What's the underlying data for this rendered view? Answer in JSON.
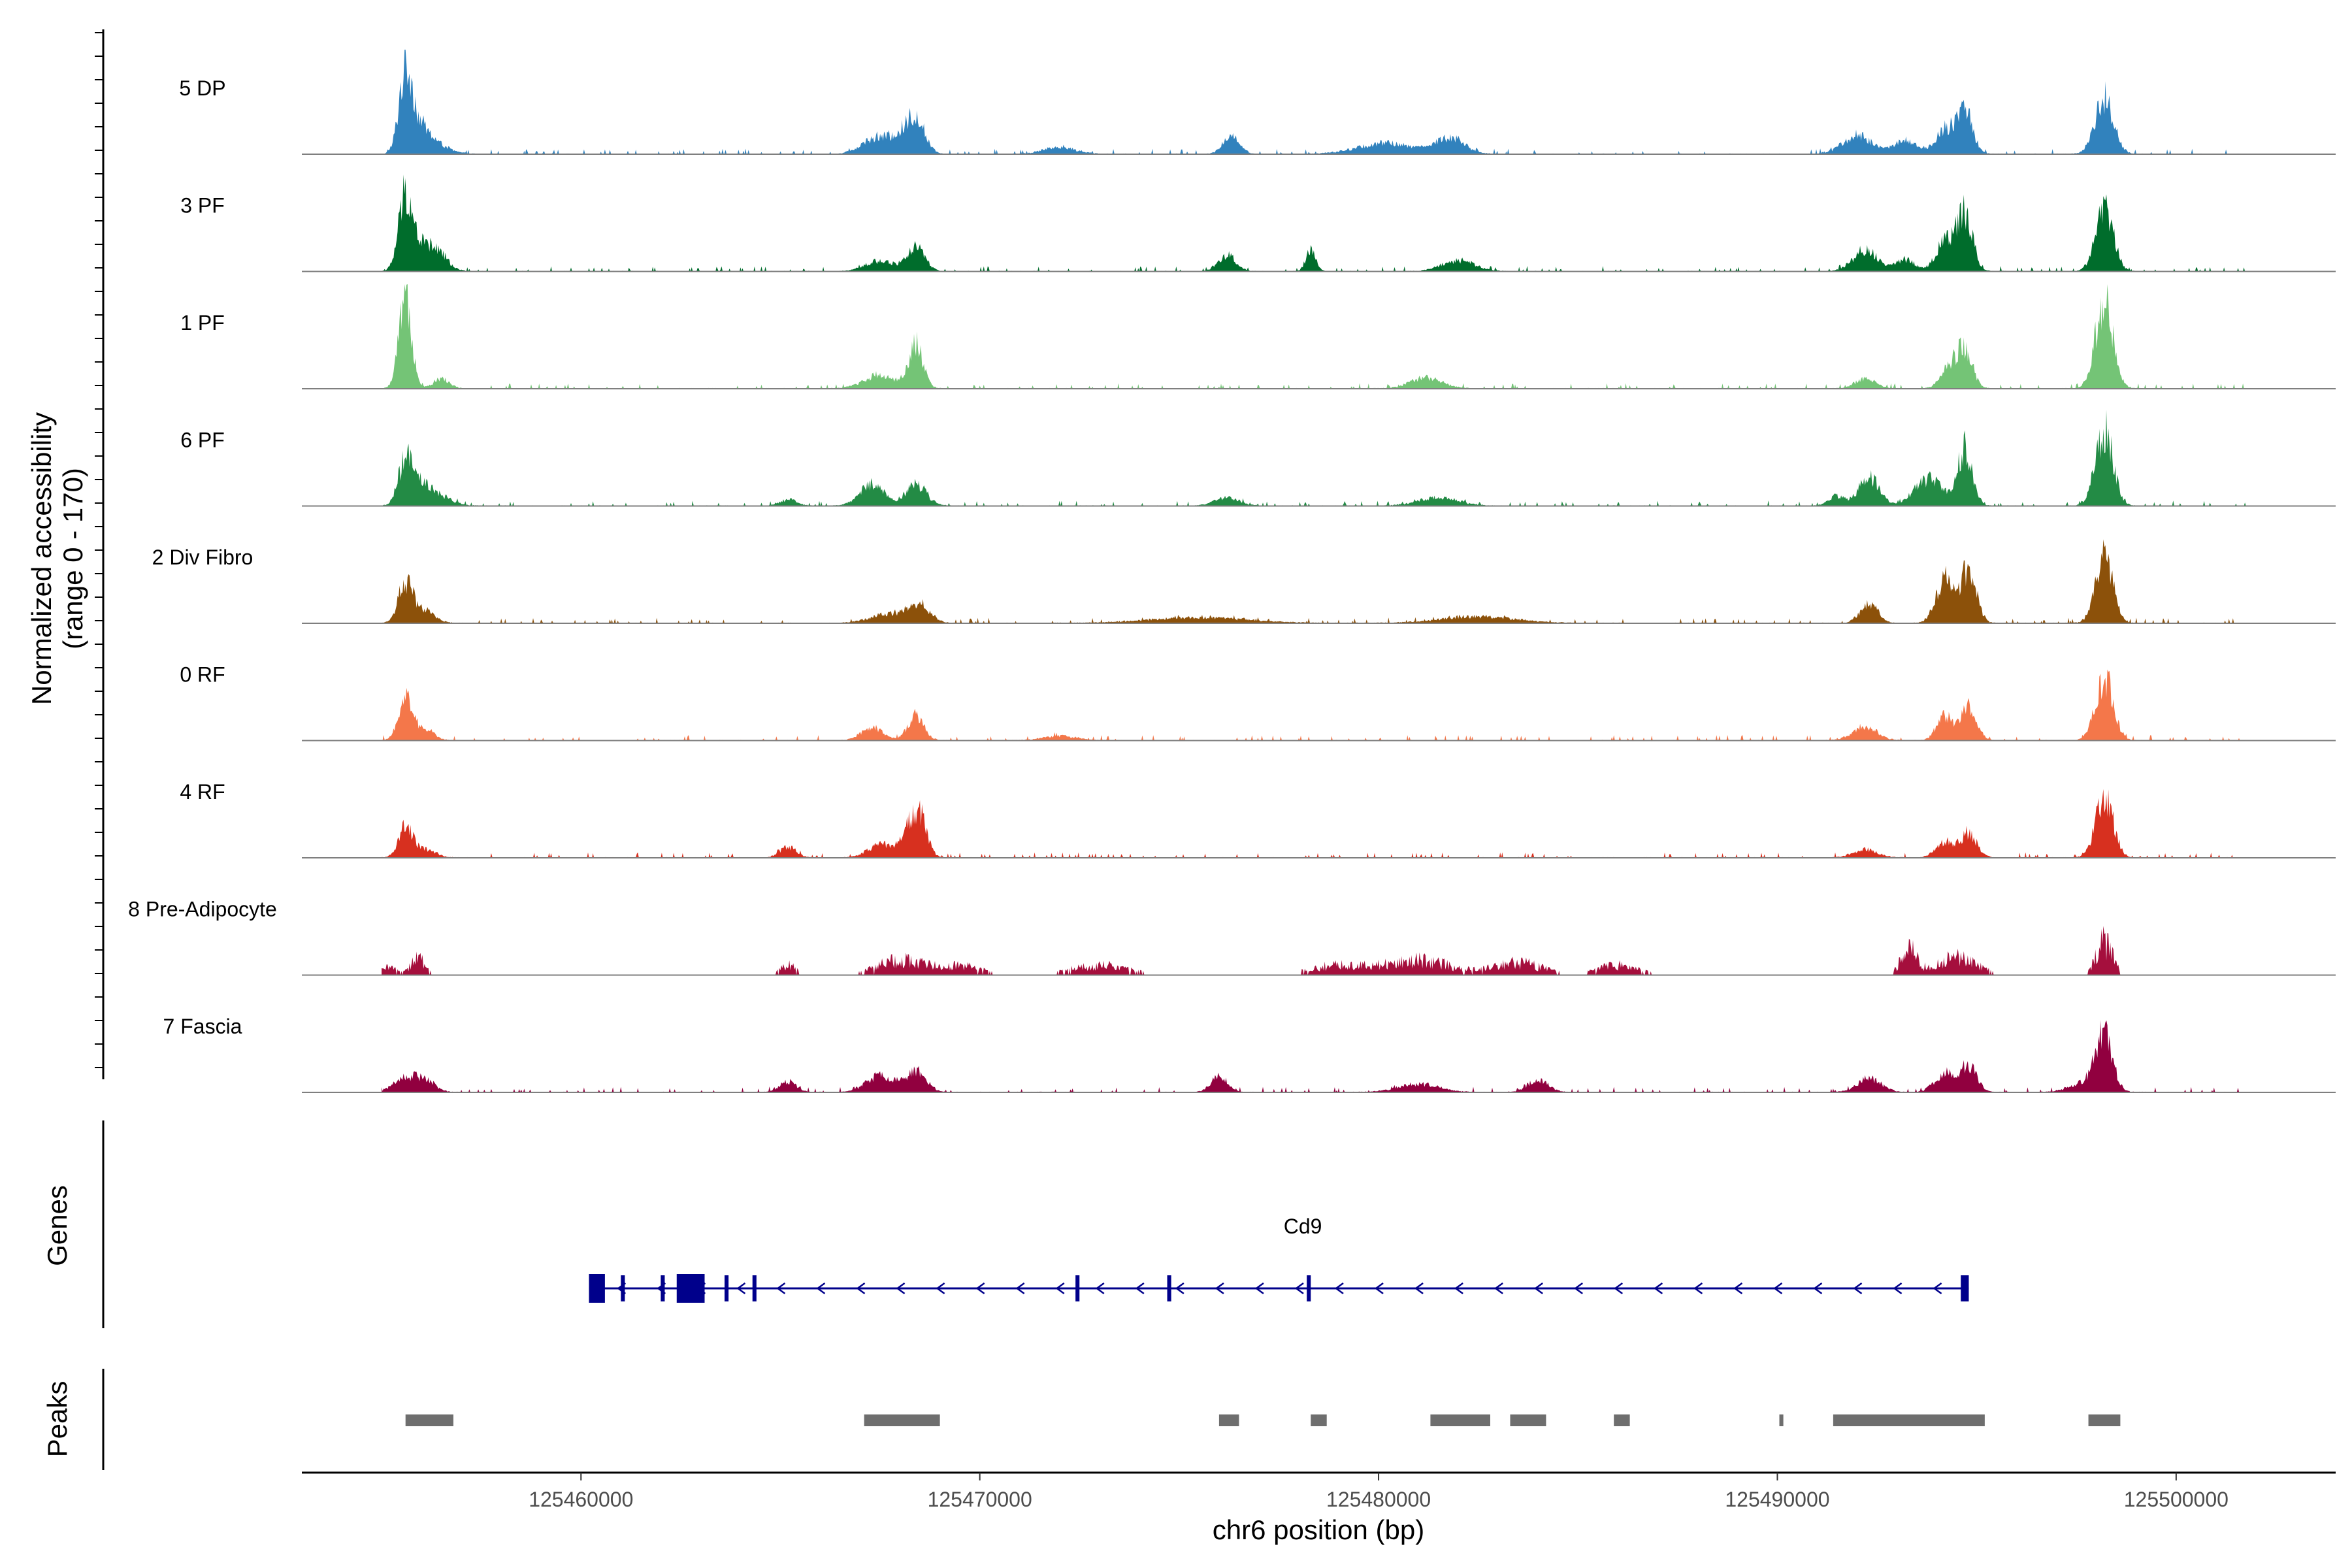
{
  "chart_data": {
    "type": "area",
    "title": "",
    "ylabel_line1": "Normalized accessibility",
    "ylabel_line2": "(range 0 - 170)",
    "ylim": [
      0,
      170
    ],
    "xlabel": "chr6 position (bp)",
    "xlim": [
      125453000,
      125504000
    ],
    "x_ticks": [
      125460000,
      125470000,
      125480000,
      125490000,
      125500000
    ],
    "x_tick_labels": [
      "125460000",
      "125470000",
      "125480000",
      "125490000",
      "125500000"
    ],
    "tracks": [
      {
        "name": "5 DP",
        "color": "#3182BD",
        "peaks": [
          [
            125455600,
            150,
            160
          ],
          [
            125455900,
            45,
            260
          ],
          [
            125456300,
            18,
            350
          ],
          [
            125467400,
            30,
            350
          ],
          [
            125468000,
            25,
            250
          ],
          [
            125468400,
            65,
            220
          ],
          [
            125472000,
            12,
            400
          ],
          [
            125476300,
            35,
            200
          ],
          [
            125480200,
            20,
            700
          ],
          [
            125481800,
            30,
            350
          ],
          [
            125492000,
            35,
            350
          ],
          [
            125493200,
            25,
            300
          ],
          [
            125494200,
            45,
            220
          ],
          [
            125494700,
            78,
            200
          ],
          [
            125498200,
            105,
            230
          ]
        ]
      },
      {
        "name": "3 PF",
        "color": "#006D2C",
        "peaks": [
          [
            125455600,
            145,
            170
          ],
          [
            125456000,
            40,
            200
          ],
          [
            125456400,
            35,
            250
          ],
          [
            125467500,
            20,
            350
          ],
          [
            125468400,
            45,
            220
          ],
          [
            125476200,
            30,
            220
          ],
          [
            125478300,
            40,
            120
          ],
          [
            125482000,
            20,
            400
          ],
          [
            125492200,
            40,
            300
          ],
          [
            125493200,
            22,
            250
          ],
          [
            125494200,
            55,
            220
          ],
          [
            125494700,
            110,
            190
          ],
          [
            125498200,
            120,
            220
          ]
        ]
      },
      {
        "name": "1 PF",
        "color": "#74C476",
        "peaks": [
          [
            125455600,
            168,
            160
          ],
          [
            125456500,
            18,
            200
          ],
          [
            125467500,
            25,
            400
          ],
          [
            125468400,
            80,
            180
          ],
          [
            125481200,
            20,
            400
          ],
          [
            125492200,
            18,
            250
          ],
          [
            125494300,
            40,
            200
          ],
          [
            125494700,
            70,
            190
          ],
          [
            125498200,
            165,
            220
          ]
        ]
      },
      {
        "name": "6 PF",
        "color": "#238B45",
        "peaks": [
          [
            125455600,
            80,
            180
          ],
          [
            125456000,
            35,
            250
          ],
          [
            125456500,
            15,
            300
          ],
          [
            125465200,
            12,
            200
          ],
          [
            125467300,
            40,
            300
          ],
          [
            125468400,
            40,
            260
          ],
          [
            125476200,
            15,
            300
          ],
          [
            125481500,
            15,
            500
          ],
          [
            125491500,
            18,
            200
          ],
          [
            125492300,
            55,
            250
          ],
          [
            125493800,
            50,
            350
          ],
          [
            125494700,
            105,
            190
          ],
          [
            125498200,
            140,
            220
          ]
        ]
      },
      {
        "name": "2 Div Fibro",
        "color": "#8C510A",
        "peaks": [
          [
            125455600,
            75,
            180
          ],
          [
            125456100,
            22,
            250
          ],
          [
            125467800,
            18,
            500
          ],
          [
            125468500,
            30,
            250
          ],
          [
            125475500,
            10,
            1200
          ],
          [
            125482500,
            12,
            900
          ],
          [
            125492300,
            35,
            220
          ],
          [
            125494200,
            85,
            220
          ],
          [
            125494800,
            105,
            190
          ],
          [
            125498200,
            120,
            220
          ]
        ]
      },
      {
        "name": "0 RF",
        "color": "#F4774A",
        "peaks": [
          [
            125455600,
            85,
            170
          ],
          [
            125456100,
            20,
            220
          ],
          [
            125467300,
            25,
            250
          ],
          [
            125468400,
            45,
            200
          ],
          [
            125472000,
            8,
            400
          ],
          [
            125492200,
            25,
            300
          ],
          [
            125494200,
            45,
            200
          ],
          [
            125494800,
            60,
            200
          ],
          [
            125498200,
            115,
            220
          ]
        ]
      },
      {
        "name": "4 RF",
        "color": "#D7301F",
        "peaks": [
          [
            125455600,
            60,
            170
          ],
          [
            125456100,
            15,
            250
          ],
          [
            125465200,
            20,
            200
          ],
          [
            125467500,
            25,
            300
          ],
          [
            125468200,
            45,
            200
          ],
          [
            125468500,
            70,
            180
          ],
          [
            125492200,
            15,
            300
          ],
          [
            125494200,
            30,
            220
          ],
          [
            125494800,
            45,
            200
          ],
          [
            125498200,
            110,
            220
          ]
        ]
      },
      {
        "name": "8 Pre-Adipocyte",
        "color": "#A50F3D",
        "peaks": [
          [
            125455200,
            15,
            200
          ],
          [
            125455900,
            35,
            180
          ],
          [
            125465200,
            20,
            200
          ],
          [
            125468000,
            30,
            600
          ],
          [
            125469500,
            20,
            500
          ],
          [
            125473000,
            20,
            700
          ],
          [
            125479000,
            20,
            700
          ],
          [
            125481000,
            30,
            800
          ],
          [
            125483500,
            25,
            600
          ],
          [
            125486000,
            20,
            500
          ],
          [
            125493300,
            55,
            200
          ],
          [
            125494500,
            35,
            500
          ],
          [
            125498200,
            65,
            200
          ]
        ]
      },
      {
        "name": "7 Fascia",
        "color": "#91003F",
        "peaks": [
          [
            125455600,
            25,
            300
          ],
          [
            125456100,
            20,
            250
          ],
          [
            125465200,
            20,
            200
          ],
          [
            125467500,
            30,
            350
          ],
          [
            125468400,
            40,
            250
          ],
          [
            125476000,
            30,
            200
          ],
          [
            125481000,
            15,
            500
          ],
          [
            125484000,
            22,
            250
          ],
          [
            125492300,
            25,
            300
          ],
          [
            125494200,
            35,
            250
          ],
          [
            125494800,
            50,
            200
          ],
          [
            125497800,
            20,
            400
          ],
          [
            125498200,
            105,
            200
          ]
        ]
      }
    ],
    "genes_title": "Genes",
    "gene": {
      "name": "Cd9",
      "strand": "-",
      "start": 125460200,
      "end": 125494800,
      "exons": [
        [
          125460200,
          125460600
        ],
        [
          125461000,
          125461100
        ],
        [
          125462000,
          125462100
        ],
        [
          125462400,
          125463100
        ],
        [
          125463600,
          125463700
        ],
        [
          125464300,
          125464400
        ],
        [
          125472400,
          125472500
        ],
        [
          125474700,
          125474800
        ],
        [
          125478200,
          125478300
        ],
        [
          125494600,
          125494800
        ]
      ]
    },
    "peaks_title": "Peaks",
    "peak_regions": [
      [
        125455600,
        125456800
      ],
      [
        125467100,
        125469000
      ],
      [
        125476000,
        125476500
      ],
      [
        125478300,
        125478700
      ],
      [
        125481300,
        125482800
      ],
      [
        125483300,
        125484200
      ],
      [
        125485900,
        125486300
      ],
      [
        125490050,
        125490150
      ],
      [
        125491400,
        125495200
      ],
      [
        125497800,
        125498600
      ]
    ]
  }
}
